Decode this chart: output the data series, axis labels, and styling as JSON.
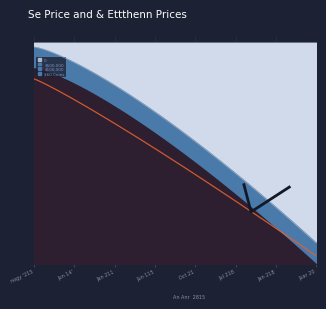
{
  "title": "Se Price and & Ettthenn Prices",
  "bg_color": "#1c2133",
  "plot_bg_color": "#1c2133",
  "grid_color": "#2e3450",
  "x_labels": [
    "nogy '215",
    "Jun 14'",
    "Jan 211",
    "Jun 115",
    "Oct 21",
    "Jul 218",
    "Jan 218",
    "Juar 20"
  ],
  "legend_labels": [
    "0",
    "$500,000",
    "$100,000",
    "$60 Coins"
  ],
  "line_top_color": "#c0c8d8",
  "line_orange_color": "#e06030",
  "fill_light_color": "#d0daea",
  "fill_blue_color": "#4a7aaa",
  "fill_dark_color": "#2d1f2f",
  "dark_line_color": "#1a1a2e",
  "white_line_color": "#b0b8c8",
  "arrow_line_color": "#111828"
}
